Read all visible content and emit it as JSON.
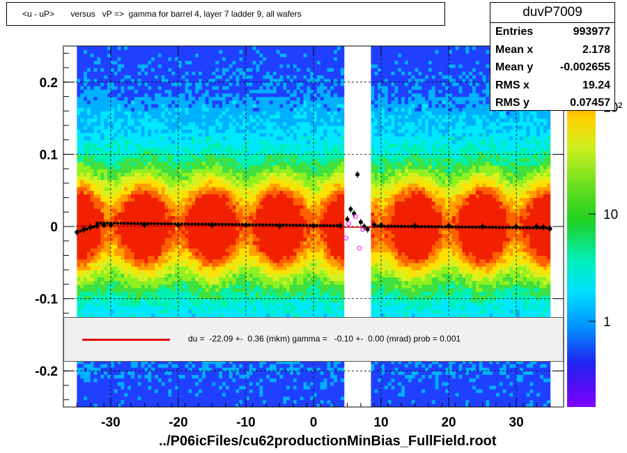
{
  "title": "<u - uP>       versus   vP =>  gamma for barrel 4, layer 7 ladder 9, all wafers",
  "stats": {
    "name": "duvP7009",
    "rows": [
      {
        "key": "Entries",
        "value": "993977"
      },
      {
        "key": "Mean x",
        "value": "2.178"
      },
      {
        "key": "Mean y",
        "value": "-0.002655"
      },
      {
        "key": "RMS x",
        "value": "19.24"
      },
      {
        "key": "RMS y",
        "value": "0.07457"
      }
    ]
  },
  "legend": {
    "text": "du =  -22.09 +-  0.36 (mkm) gamma =   -0.10 +-  0.00 (mrad) prob = 0.001",
    "line_color": "#e00000"
  },
  "file_label": "../P06icFiles/cu62productionMinBias_FullField.root",
  "colors": {
    "profile_points": "#000000",
    "fit_line": "#e00000",
    "open_markers": "#ff00ff"
  },
  "chart_data": {
    "type": "heatmap",
    "title": "<u - uP>       versus   vP =>  gamma for barrel 4, layer 7 ladder 9, all wafers",
    "xlabel": "",
    "ylabel": "",
    "xlim": [
      -37,
      37
    ],
    "ylim": [
      -0.25,
      0.25
    ],
    "x_ticks": [
      -30,
      -20,
      -10,
      0,
      10,
      20,
      30
    ],
    "y_ticks": [
      -0.2,
      -0.1,
      0,
      0.1,
      0.2
    ],
    "x_tick_labels": [
      "-30",
      "-20",
      "-10",
      "0",
      "10",
      "20",
      "30"
    ],
    "y_tick_labels": [
      "-0.2",
      "-0.1",
      "0",
      "0.1",
      "0.2"
    ],
    "grid": true,
    "z_scale": "log",
    "z_tick_labels": [
      "1",
      "10",
      "10²"
    ],
    "z_ticks": [
      1,
      10,
      100
    ],
    "data_x_range": [
      -35,
      35
    ],
    "empty_x_range": [
      4.5,
      8.5
    ],
    "band_center_y": 0,
    "profile": {
      "x": [
        -35,
        -34,
        -33,
        -32,
        -31,
        -30,
        -25,
        -20,
        -15,
        -10,
        -5,
        0,
        4,
        5,
        5.5,
        6,
        6.5,
        7,
        7.5,
        8,
        9,
        10,
        15,
        20,
        25,
        30,
        33,
        34,
        35
      ],
      "y": [
        -0.008,
        -0.004,
        -0.001,
        0.001,
        0.002,
        0.002,
        0.002,
        0.002,
        0.002,
        0.002,
        0.001,
        0.001,
        0.001,
        0.01,
        0.024,
        0.018,
        0.072,
        0.006,
        0.0,
        -0.004,
        0.002,
        0.002,
        0.001,
        0.001,
        0.0,
        0.0,
        0.0,
        -0.001,
        -0.003
      ]
    },
    "fit_line": {
      "x": [
        -35,
        35
      ],
      "y": [
        0.0012,
        -0.0025
      ]
    },
    "open_markers": {
      "x": [
        4.8,
        5.2,
        6.2,
        6.8,
        7.3
      ],
      "y": [
        -0.016,
        0.004,
        0.014,
        -0.03,
        -0.004
      ]
    }
  }
}
